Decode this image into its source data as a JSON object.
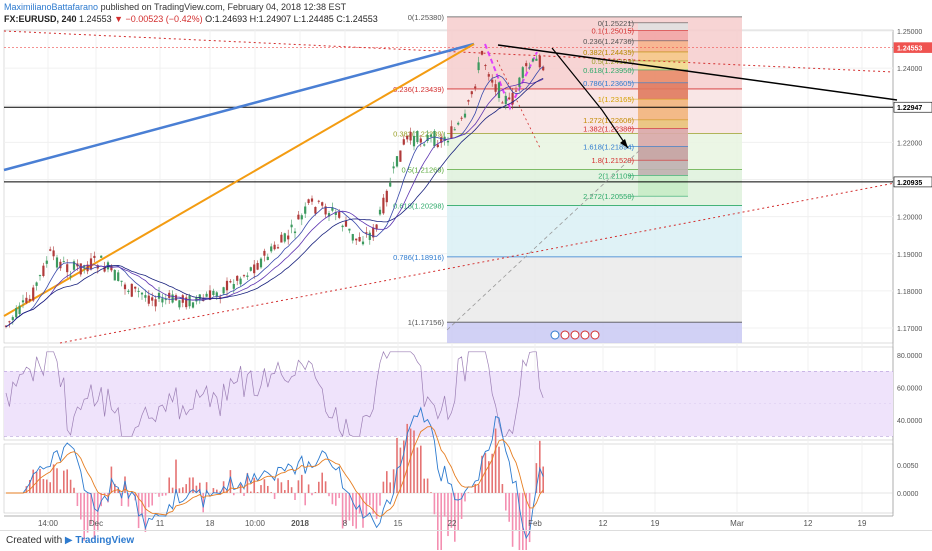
{
  "header": {
    "author": "MaximilianoBattafarano",
    "published": "published on TradingView.com, February 04, 2018 12:38 EST",
    "symbol": "FX:EURUSD, 240",
    "last": "1.24553",
    "change": "▼ −0.00523 (−0.42%)",
    "ohlc": "O:1.24693 H:1.24907 L:1.24485 C:1.24553"
  },
  "footer": {
    "created_with": "Created with",
    "brand": "TradingView"
  },
  "colors": {
    "up": "#26a69a",
    "down": "#ef5350",
    "candle_up": "#3c9a5f",
    "candle_down": "#b03a3a",
    "blue_line": "#4a7fd4",
    "orange_line": "#f39c12",
    "fib_red": "#f4b6b6",
    "fib_green": "#cfeecf",
    "rsi_band": "#efe3fb",
    "macd_line": "#2e7bcf",
    "signal_line": "#e67e22"
  },
  "chart_data": [
    {
      "type": "candlestick",
      "title": "FX:EURUSD, 240",
      "y_ticks": [
        "1.25000",
        "1.24000",
        "1.23000",
        "1.22000",
        "1.21000",
        "1.20000",
        "1.19000",
        "1.18000",
        "1.17000"
      ],
      "ylim": [
        1.1645,
        1.2585
      ],
      "x_ticks": [
        "14:00",
        "Dec",
        "11",
        "18",
        "10:00",
        "2018",
        "8",
        "15",
        "22",
        "Feb",
        "12",
        "19",
        "Mar",
        "12",
        "19"
      ],
      "price_labels": [
        {
          "value": 1.24553,
          "text": "1.24553",
          "color": "#ef5350"
        },
        {
          "value": 1.22947,
          "text": "1.22947",
          "color": "#000000"
        },
        {
          "value": 1.20935,
          "text": "1.20935",
          "color": "#000000"
        }
      ],
      "fib_retracement_left": [
        {
          "text": "0(1.25380)",
          "value": 1.2538
        },
        {
          "text": "0.236(1.23439)",
          "value": 1.23439
        },
        {
          "text": "0.382(1.22239)",
          "value": 1.22239
        },
        {
          "text": "0.5(1.21269)",
          "value": 1.21269
        },
        {
          "text": "0.618(1.20298)",
          "value": 1.20298
        },
        {
          "text": "0.786(1.18916)",
          "value": 1.18916
        },
        {
          "text": "1(1.17156)",
          "value": 1.17156
        }
      ],
      "fib_extension_right": [
        {
          "text": "0(1.25221)",
          "value": 1.25221
        },
        {
          "text": "0.1(1.25015)",
          "value": 1.25015
        },
        {
          "text": "0.236(1.24736)",
          "value": 1.24736
        },
        {
          "text": "0.382(1.24435)",
          "value": 1.24435
        },
        {
          "text": "0.5(1.24193)",
          "value": 1.24193
        },
        {
          "text": "0.618(1.23950)",
          "value": 1.2395
        },
        {
          "text": "0.786(1.23605)",
          "value": 1.23605
        },
        {
          "text": "1(1.23165)",
          "value": 1.23165
        },
        {
          "text": "1.272(1.22606)",
          "value": 1.22606
        },
        {
          "text": "1.382(1.22380)",
          "value": 1.2238
        },
        {
          "text": "1.618(1.21894)",
          "value": 1.21894
        },
        {
          "text": "1.8(1.21520)",
          "value": 1.2152
        },
        {
          "text": "2(1.21109)",
          "value": 1.21109
        },
        {
          "text": "2.272(1.20550)",
          "value": 1.2055
        }
      ]
    },
    {
      "type": "line",
      "title": "RSI",
      "y_ticks": [
        "80.0000",
        "60.0000",
        "40.0000"
      ],
      "ylim": [
        25,
        85
      ],
      "bands": [
        70,
        30
      ]
    },
    {
      "type": "line",
      "title": "MACD",
      "y_ticks": [
        "0.0050",
        "0.0000"
      ],
      "ylim": [
        -0.004,
        0.0072
      ],
      "series": [
        {
          "values": []
        },
        {
          "values": []
        }
      ]
    }
  ]
}
